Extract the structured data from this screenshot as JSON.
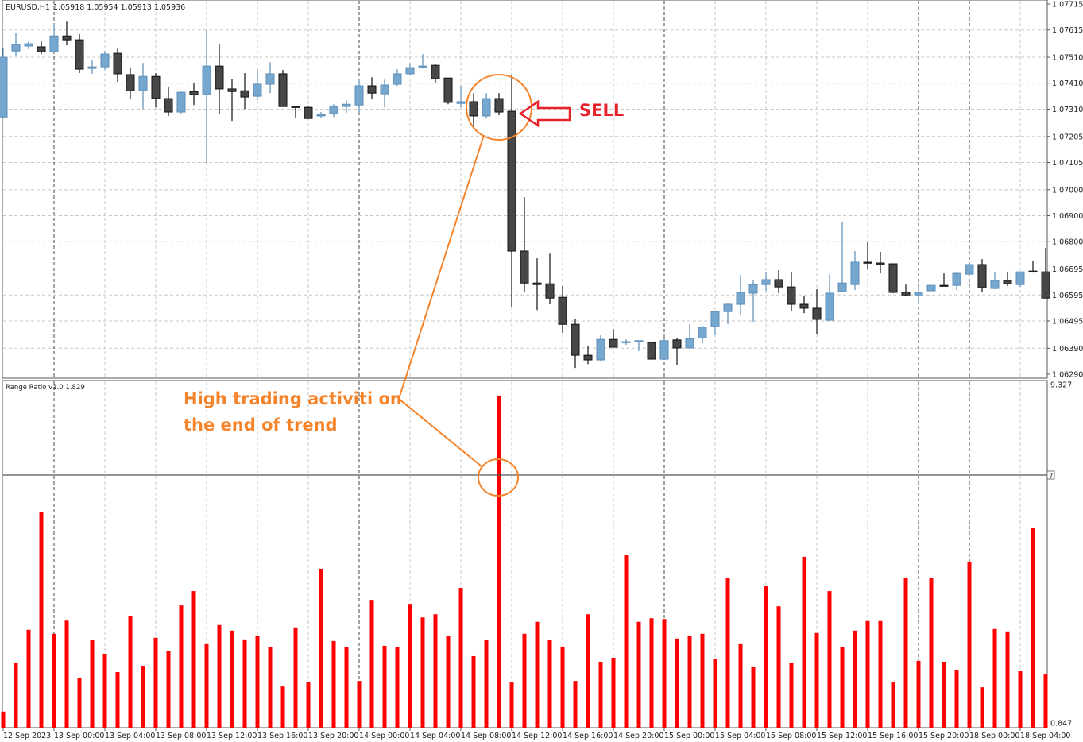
{
  "header": {
    "symbol": "EURUSD,H1",
    "ohlc": "1.05918 1.05954 1.05913 1.05936"
  },
  "indicator": {
    "label": "Range Ratio v1.0 1.829",
    "level_label": "7"
  },
  "annotations": {
    "sell_label": "SELL",
    "note_line1": "High trading activiti on",
    "note_line2": "the end of trend"
  },
  "colors": {
    "bull": "#76a7cf",
    "bull_border": "#5b8db8",
    "bear": "#474747",
    "bear_border": "#111111",
    "histogram": "#ff0000",
    "annotation": "#f5832a",
    "sell": "#e8202a"
  },
  "chart_data": [
    {
      "type": "candlestick",
      "title": "EURUSD,H1",
      "ylim": [
        1.0629,
        1.07715
      ],
      "y_ticks": [
        "1.07715",
        "1.07615",
        "1.07510",
        "1.07410",
        "1.07310",
        "1.07205",
        "1.07105",
        "1.07000",
        "1.06900",
        "1.06800",
        "1.06695",
        "1.06595",
        "1.06495",
        "1.06390",
        "1.06290"
      ],
      "grid": true,
      "ohlc": [
        [
          1.0728,
          1.07547,
          1.07277,
          1.0751
        ],
        [
          1.07534,
          1.07602,
          1.07513,
          1.07559
        ],
        [
          1.07553,
          1.07571,
          1.0754,
          1.07562
        ],
        [
          1.0755,
          1.07571,
          1.07522,
          1.07531
        ],
        [
          1.07531,
          1.07641,
          1.07528,
          1.07592
        ],
        [
          1.07592,
          1.07647,
          1.07556,
          1.07577
        ],
        [
          1.07577,
          1.07599,
          1.07449,
          1.07464
        ],
        [
          1.07467,
          1.07501,
          1.07446,
          1.07473
        ],
        [
          1.07473,
          1.07534,
          1.07461,
          1.07522
        ],
        [
          1.07525,
          1.07543,
          1.07415,
          1.07446
        ],
        [
          1.07443,
          1.0747,
          1.07348,
          1.07381
        ],
        [
          1.07381,
          1.07488,
          1.07311,
          1.07436
        ],
        [
          1.07436,
          1.07449,
          1.07317,
          1.07351
        ],
        [
          1.07351,
          1.07397,
          1.07284,
          1.07299
        ],
        [
          1.07299,
          1.07378,
          1.07293,
          1.07375
        ],
        [
          1.07378,
          1.07409,
          1.07326,
          1.07366
        ],
        [
          1.07366,
          1.07614,
          1.07103,
          1.07476
        ],
        [
          1.07476,
          1.07559,
          1.0729,
          1.07388
        ],
        [
          1.07388,
          1.07427,
          1.07265,
          1.07378
        ],
        [
          1.07381,
          1.07449,
          1.07311,
          1.07357
        ],
        [
          1.0736,
          1.07464,
          1.07345,
          1.07406
        ],
        [
          1.07406,
          1.07491,
          1.07372,
          1.07446
        ],
        [
          1.07446,
          1.07461,
          1.0732,
          1.0732
        ],
        [
          1.0732,
          1.0732,
          1.07277,
          1.07317
        ],
        [
          1.07317,
          1.0732,
          1.07274,
          1.07274
        ],
        [
          1.07284,
          1.07299,
          1.07277,
          1.0729
        ],
        [
          1.07293,
          1.07329,
          1.0728,
          1.0732
        ],
        [
          1.0732,
          1.07345,
          1.07296,
          1.07329
        ],
        [
          1.07326,
          1.07424,
          1.07296,
          1.074
        ],
        [
          1.074,
          1.07433,
          1.07351,
          1.07372
        ],
        [
          1.07369,
          1.07424,
          1.07317,
          1.07403
        ],
        [
          1.07406,
          1.07464,
          1.074,
          1.07446
        ],
        [
          1.07446,
          1.07488,
          1.07443,
          1.0747
        ],
        [
          1.07473,
          1.07522,
          1.07467,
          1.07476
        ],
        [
          1.07479,
          1.07485,
          1.07409,
          1.07427
        ],
        [
          1.0743,
          1.0743,
          1.07329,
          1.07336
        ],
        [
          1.07332,
          1.074,
          1.07317,
          1.07339
        ],
        [
          1.07339,
          1.07372,
          1.07241,
          1.07284
        ],
        [
          1.07284,
          1.07372,
          1.07274,
          1.07351
        ],
        [
          1.07351,
          1.07372,
          1.07287,
          1.07299
        ],
        [
          1.07302,
          1.07443,
          1.06547,
          1.06764
        ],
        [
          1.06764,
          1.06972,
          1.06605,
          1.06641
        ],
        [
          1.06641,
          1.06736,
          1.06537,
          1.06635
        ],
        [
          1.06638,
          1.06754,
          1.06559,
          1.06583
        ],
        [
          1.06586,
          1.06629,
          1.06449,
          1.06482
        ],
        [
          1.06482,
          1.06504,
          1.06314,
          1.06363
        ],
        [
          1.06363,
          1.064,
          1.06329,
          1.06345
        ],
        [
          1.06345,
          1.0644,
          1.06339,
          1.06424
        ],
        [
          1.06424,
          1.06464,
          1.06394,
          1.06394
        ],
        [
          1.06412,
          1.06424,
          1.06403,
          1.06415
        ],
        [
          1.06418,
          1.06419,
          1.06379,
          1.06419
        ],
        [
          1.06412,
          1.06412,
          1.06348,
          1.06348
        ],
        [
          1.06348,
          1.0643,
          1.06348,
          1.06419
        ],
        [
          1.06422,
          1.0643,
          1.06326,
          1.06391
        ],
        [
          1.06391,
          1.06482,
          1.06391,
          1.06427
        ],
        [
          1.0643,
          1.06476,
          1.06409,
          1.06471
        ],
        [
          1.06473,
          1.06531,
          1.0644,
          1.06531
        ],
        [
          1.06531,
          1.06562,
          1.06482,
          1.06559
        ],
        [
          1.06559,
          1.06672,
          1.06516,
          1.06605
        ],
        [
          1.06602,
          1.06651,
          1.06492,
          1.06635
        ],
        [
          1.06635,
          1.06684,
          1.06611,
          1.06654
        ],
        [
          1.06654,
          1.0669,
          1.06602,
          1.06626
        ],
        [
          1.06626,
          1.06681,
          1.06534,
          1.06559
        ],
        [
          1.06559,
          1.06592,
          1.06525,
          1.06544
        ],
        [
          1.06544,
          1.06617,
          1.06446,
          1.06501
        ],
        [
          1.06498,
          1.06675,
          1.06495,
          1.06602
        ],
        [
          1.06608,
          1.06877,
          1.06608,
          1.06641
        ],
        [
          1.06635,
          1.06764,
          1.06614,
          1.06721
        ],
        [
          1.06721,
          1.068,
          1.06696,
          1.06718
        ],
        [
          1.06718,
          1.06761,
          1.06678,
          1.06712
        ],
        [
          1.06715,
          1.06715,
          1.06602,
          1.06605
        ],
        [
          1.06605,
          1.06635,
          1.06592,
          1.06595
        ],
        [
          1.06595,
          1.06626,
          1.06565,
          1.06605
        ],
        [
          1.06611,
          1.06632,
          1.06611,
          1.06632
        ],
        [
          1.06632,
          1.06678,
          1.06629,
          1.06629
        ],
        [
          1.06632,
          1.06684,
          1.06614,
          1.06678
        ],
        [
          1.06675,
          1.06712,
          1.06675,
          1.06712
        ],
        [
          1.06712,
          1.06733,
          1.06605,
          1.06623
        ],
        [
          1.0662,
          1.06681,
          1.06617,
          1.06651
        ],
        [
          1.06651,
          1.06684,
          1.06629,
          1.06638
        ],
        [
          1.06635,
          1.06684,
          1.06626,
          1.06684
        ],
        [
          1.06687,
          1.06727,
          1.06681,
          1.06684
        ],
        [
          1.06684,
          1.06776,
          1.06583,
          1.06583
        ]
      ]
    },
    {
      "type": "bar",
      "title": "Range Ratio v1.0 1.829",
      "ylim": [
        0.847,
        9.327
      ],
      "y_ticks": [
        "9.327",
        "0.847"
      ],
      "level": 7,
      "values": [
        1.13,
        2.34,
        3.18,
        6.14,
        3.08,
        3.41,
        1.98,
        2.92,
        2.58,
        2.12,
        3.53,
        2.28,
        2.98,
        2.64,
        3.79,
        4.15,
        2.82,
        3.3,
        3.16,
        2.94,
        3.02,
        2.74,
        1.76,
        3.24,
        1.88,
        4.71,
        2.9,
        2.74,
        1.9,
        3.93,
        2.78,
        2.74,
        3.83,
        3.49,
        3.57,
        3.02,
        4.23,
        2.52,
        2.92,
        9.05,
        1.86,
        3.08,
        3.38,
        2.92,
        2.76,
        1.9,
        3.57,
        2.38,
        2.48,
        5.05,
        3.38,
        3.47,
        3.45,
        2.96,
        3.02,
        3.08,
        2.46,
        4.49,
        2.82,
        2.26,
        4.27,
        3.77,
        2.36,
        5.01,
        3.1,
        4.15,
        2.74,
        3.16,
        3.4,
        3.4,
        1.88,
        4.47,
        2.4,
        4.47,
        2.38,
        2.18,
        4.89,
        1.74,
        3.2,
        3.14,
        2.16,
        5.74,
        2.06
      ]
    }
  ],
  "time_axis": {
    "labels": [
      "12 Sep 2023",
      "13 Sep 00:00",
      "13 Sep 04:00",
      "13 Sep 08:00",
      "13 Sep 12:00",
      "13 Sep 16:00",
      "13 Sep 20:00",
      "14 Sep 00:00",
      "14 Sep 04:00",
      "14 Sep 08:00",
      "14 Sep 12:00",
      "14 Sep 16:00",
      "14 Sep 20:00",
      "15 Sep 00:00",
      "15 Sep 04:00",
      "15 Sep 08:00",
      "15 Sep 12:00",
      "15 Sep 16:00",
      "15 Sep 20:00",
      "18 Sep 00:00",
      "18 Sep 04:00"
    ]
  }
}
